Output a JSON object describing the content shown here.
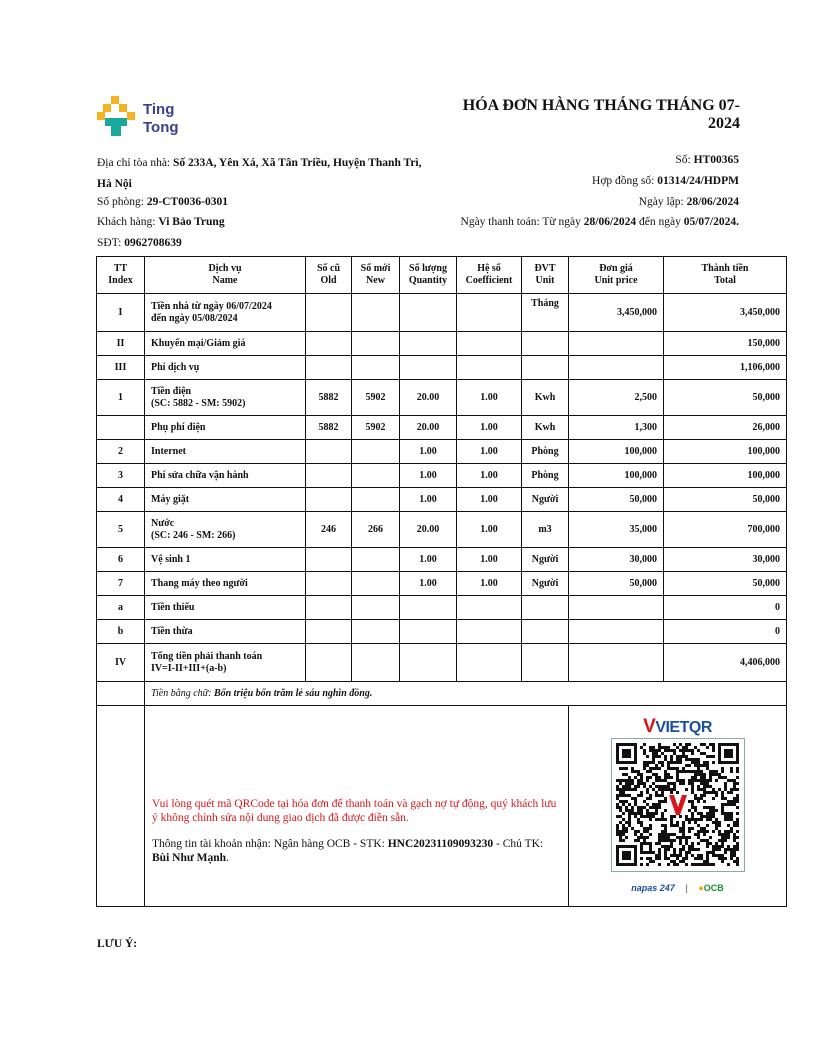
{
  "logo_text": "Ting Tong",
  "title": "HÓA ĐƠN HÀNG THÁNG THÁNG 07-2024",
  "info_left": {
    "address_label": "Địa chỉ tòa nhà:",
    "address": "Số 233A, Yên Xá, Xã Tân Triều, Huyện Thanh Trì, Hà Nội",
    "room_label": "Số phòng:",
    "room": "29-CT0036-0301",
    "customer_label": "Khách hàng:",
    "customer": "Vi Bảo Trung",
    "phone_label": "SĐT:",
    "phone": "0962708639"
  },
  "info_right": {
    "number_label": "Số:",
    "number": "HT00365",
    "contract_label": "Hợp đồng số:",
    "contract": "01314/24/HDPM",
    "date_label": "Ngày lập:",
    "date": "28/06/2024",
    "pay_label": "Ngày thanh toán: Từ ngày",
    "pay_from": "28/06/2024",
    "pay_mid": "đến ngày",
    "pay_to": "05/07/2024."
  },
  "table": {
    "headers": [
      [
        "TT",
        "Index"
      ],
      [
        "Dịch vụ",
        "Name"
      ],
      [
        "Số cũ",
        "Old"
      ],
      [
        "Số mới",
        "New"
      ],
      [
        "Số lượng",
        "Quantity"
      ],
      [
        "Hệ số",
        "Coefficient"
      ],
      [
        "ĐVT",
        "Unit"
      ],
      [
        "Đơn giá",
        "Unit price"
      ],
      [
        "Thành tiền",
        "Total"
      ]
    ],
    "rows": [
      {
        "idx": "I",
        "name": "Tiền nhà từ ngày 06/07/2024",
        "name2": "đến ngày 05/08/2024",
        "old": "",
        "new": "",
        "qty": "",
        "coef": "",
        "unit": "Tháng",
        "price": "3,450,000",
        "total": "3,450,000"
      },
      {
        "idx": "II",
        "name": "Khuyến mại/Giảm giá",
        "name2": "",
        "old": "",
        "new": "",
        "qty": "",
        "coef": "",
        "unit": "",
        "price": "",
        "total": "150,000"
      },
      {
        "idx": "III",
        "name": "Phí dịch vụ",
        "name2": "",
        "old": "",
        "new": "",
        "qty": "",
        "coef": "",
        "unit": "",
        "price": "",
        "total": "1,106,000"
      },
      {
        "idx": "1",
        "name": "Tiền điện",
        "name2": "(SC: 5882 - SM: 5902)",
        "old": "5882",
        "new": "5902",
        "qty": "20.00",
        "coef": "1.00",
        "unit": "Kwh",
        "price": "2,500",
        "total": "50,000"
      },
      {
        "idx": "",
        "name": "Phụ phí điện",
        "name2": "",
        "old": "5882",
        "new": "5902",
        "qty": "20.00",
        "coef": "1.00",
        "unit": "Kwh",
        "price": "1,300",
        "total": "26,000"
      },
      {
        "idx": "2",
        "name": "Internet",
        "name2": "",
        "old": "",
        "new": "",
        "qty": "1.00",
        "coef": "1.00",
        "unit": "Phòng",
        "price": "100,000",
        "total": "100,000"
      },
      {
        "idx": "3",
        "name": "Phí sửa chữa vận hành",
        "name2": "",
        "old": "",
        "new": "",
        "qty": "1.00",
        "coef": "1.00",
        "unit": "Phòng",
        "price": "100,000",
        "total": "100,000"
      },
      {
        "idx": "4",
        "name": "Máy giặt",
        "name2": "",
        "old": "",
        "new": "",
        "qty": "1.00",
        "coef": "1.00",
        "unit": "Người",
        "price": "50,000",
        "total": "50,000"
      },
      {
        "idx": "5",
        "name": "Nước",
        "name2": "(SC: 246 - SM: 266)",
        "old": "246",
        "new": "266",
        "qty": "20.00",
        "coef": "1.00",
        "unit": "m3",
        "price": "35,000",
        "total": "700,000"
      },
      {
        "idx": "6",
        "name": "Vệ sinh 1",
        "name2": "",
        "old": "",
        "new": "",
        "qty": "1.00",
        "coef": "1.00",
        "unit": "Người",
        "price": "30,000",
        "total": "30,000"
      },
      {
        "idx": "7",
        "name": "Thang máy theo người",
        "name2": "",
        "old": "",
        "new": "",
        "qty": "1.00",
        "coef": "1.00",
        "unit": "Người",
        "price": "50,000",
        "total": "50,000"
      },
      {
        "idx": "a",
        "name": "Tiền thiếu",
        "name2": "",
        "old": "",
        "new": "",
        "qty": "",
        "coef": "",
        "unit": "",
        "price": "",
        "total": "0"
      },
      {
        "idx": "b",
        "name": "Tiền thừa",
        "name2": "",
        "old": "",
        "new": "",
        "qty": "",
        "coef": "",
        "unit": "",
        "price": "",
        "total": "0"
      },
      {
        "idx": "IV",
        "name": "Tổng tiền phải thanh toán",
        "name2": "IV=I-II+III+(a-b)",
        "old": "",
        "new": "",
        "qty": "",
        "coef": "",
        "unit": "",
        "price": "",
        "total": "4,406,000"
      }
    ],
    "words_label": "Tiền bằng chữ:",
    "words": "Bốn triệu bốn trăm lẻ sáu nghìn đồng."
  },
  "payment": {
    "notice": "Vui lòng quét mã QRCode tại hóa đơn để thanh toán và gạch nợ tự động, quý khách lưu ý không chỉnh sửa nội dung giao dịch đã được điền sẵn.",
    "account_label": "Thông tin tài khoản nhận: Ngân hàng OCB - STK:",
    "account": "HNC20231109093230",
    "owner_label": "- Chủ TK:",
    "owner": "Bùi Như Mạnh",
    "vietqr_logo": "VIETQR",
    "napas_logo": "napas 247",
    "ocb_logo": "OCB",
    "notice_color": "#d9141b"
  },
  "footer_note": "LƯU Ý:"
}
